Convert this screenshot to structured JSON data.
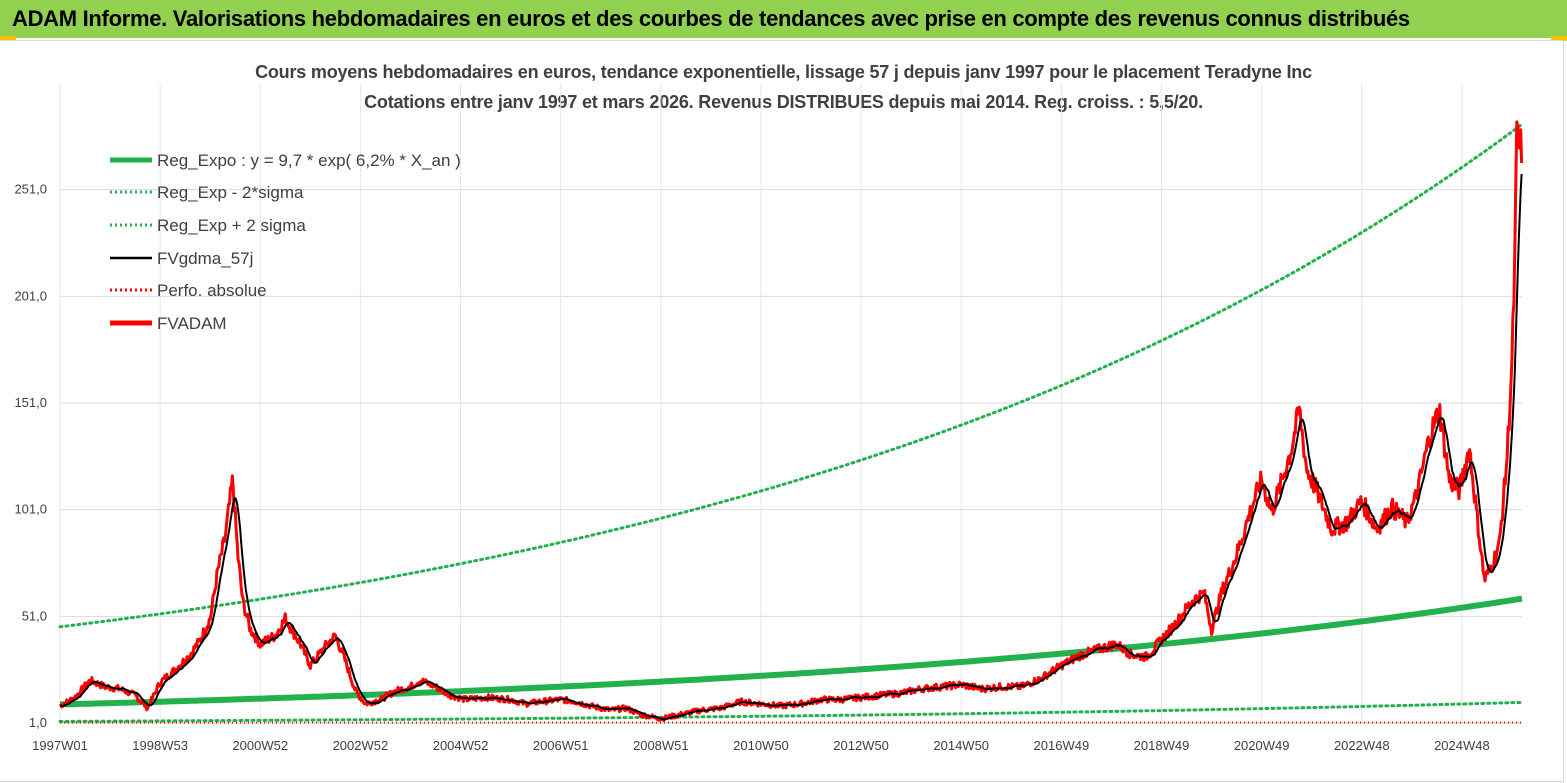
{
  "header": {
    "title": "ADAM Informe. Valorisations hebdomadaires en euros et des courbes de tendances avec prise en compte des revenus connus distribués"
  },
  "chart_data": {
    "type": "line",
    "title": "Cours moyens hebdomadaires en euros, tendance exponentielle, lissage 57 j depuis janv 1997 pour le placement Teradyne Inc",
    "subtitle": "Cotations entre janv 1997 et mars 2026. Revenus DISTRIBUES depuis mai 2014. Reg. croiss. : 5,5/20.",
    "x_tick_labels": [
      "1997W01",
      "1998W53",
      "2000W52",
      "2002W52",
      "2004W52",
      "2006W51",
      "2008W51",
      "2010W50",
      "2012W50",
      "2014W50",
      "2016W49",
      "2018W49",
      "2020W49",
      "2022W48",
      "2024W48"
    ],
    "y_tick_labels": [
      "1,0",
      "51,0",
      "101,0",
      "151,0",
      "201,0",
      "251,0"
    ],
    "xlim": [
      1997.0,
      2026.2
    ],
    "ylim": [
      1,
      301
    ],
    "y_ticks": [
      1,
      51,
      101,
      151,
      201,
      251
    ],
    "legend": {
      "position": "top-left",
      "entries": [
        {
          "name": "Reg_Expo : y = 9,7 * exp( 6,2% *  X_an )",
          "color": "#22b14c",
          "style": "solid-thick"
        },
        {
          "name": "Reg_Exp - 2*sigma",
          "color": "#22b14c",
          "style": "dotted"
        },
        {
          "name": "Reg_Exp + 2 sigma",
          "color": "#22b14c",
          "style": "dotted"
        },
        {
          "name": "FVgdma_57j",
          "color": "#000000",
          "style": "solid"
        },
        {
          "name": "Perfo. absolue",
          "color": "#ff0000",
          "style": "dotted"
        },
        {
          "name": "FVADAM",
          "color": "#ff0000",
          "style": "solid-thick"
        }
      ]
    },
    "trend": {
      "a": 9.7,
      "rate": 0.062,
      "minus_factor": 0.18,
      "plus_factor": 4.75
    },
    "fvadam_keypoints": [
      [
        1997.0,
        9
      ],
      [
        1997.3,
        13
      ],
      [
        1997.6,
        21
      ],
      [
        1997.9,
        18
      ],
      [
        1998.2,
        17
      ],
      [
        1998.5,
        14
      ],
      [
        1998.75,
        8
      ],
      [
        1999.0,
        20
      ],
      [
        1999.3,
        26
      ],
      [
        1999.6,
        33
      ],
      [
        1999.8,
        40
      ],
      [
        2000.0,
        50
      ],
      [
        2000.15,
        72
      ],
      [
        2000.3,
        88
      ],
      [
        2000.45,
        115
      ],
      [
        2000.55,
        80
      ],
      [
        2000.65,
        58
      ],
      [
        2000.8,
        45
      ],
      [
        2001.0,
        38
      ],
      [
        2001.3,
        42
      ],
      [
        2001.5,
        50
      ],
      [
        2001.8,
        38
      ],
      [
        2002.0,
        28
      ],
      [
        2002.3,
        37
      ],
      [
        2002.5,
        42
      ],
      [
        2002.7,
        30
      ],
      [
        2002.9,
        16
      ],
      [
        2003.1,
        10
      ],
      [
        2003.4,
        12
      ],
      [
        2003.7,
        16
      ],
      [
        2004.0,
        18
      ],
      [
        2004.2,
        21
      ],
      [
        2004.5,
        18
      ],
      [
        2004.8,
        14
      ],
      [
        2005.1,
        12
      ],
      [
        2005.5,
        13
      ],
      [
        2006.0,
        12
      ],
      [
        2006.3,
        10
      ],
      [
        2006.6,
        11
      ],
      [
        2007.0,
        12
      ],
      [
        2007.3,
        11
      ],
      [
        2007.6,
        9
      ],
      [
        2008.0,
        7
      ],
      [
        2008.3,
        8
      ],
      [
        2008.6,
        5
      ],
      [
        2009.0,
        3
      ],
      [
        2009.4,
        5
      ],
      [
        2009.8,
        7
      ],
      [
        2010.2,
        8
      ],
      [
        2010.6,
        11
      ],
      [
        2011.0,
        10
      ],
      [
        2011.4,
        9
      ],
      [
        2011.8,
        10
      ],
      [
        2012.2,
        12
      ],
      [
        2012.6,
        12
      ],
      [
        2013.0,
        13
      ],
      [
        2013.4,
        14
      ],
      [
        2013.8,
        15
      ],
      [
        2014.2,
        17
      ],
      [
        2014.6,
        18
      ],
      [
        2015.0,
        19
      ],
      [
        2015.4,
        17
      ],
      [
        2015.8,
        18
      ],
      [
        2016.2,
        18
      ],
      [
        2016.6,
        22
      ],
      [
        2017.0,
        28
      ],
      [
        2017.4,
        33
      ],
      [
        2017.8,
        36
      ],
      [
        2018.1,
        38
      ],
      [
        2018.4,
        33
      ],
      [
        2018.7,
        32
      ],
      [
        2019.0,
        40
      ],
      [
        2019.3,
        48
      ],
      [
        2019.6,
        58
      ],
      [
        2019.85,
        62
      ],
      [
        2020.0,
        45
      ],
      [
        2020.2,
        62
      ],
      [
        2020.5,
        80
      ],
      [
        2020.8,
        102
      ],
      [
        2021.0,
        115
      ],
      [
        2021.2,
        100
      ],
      [
        2021.4,
        114
      ],
      [
        2021.6,
        130
      ],
      [
        2021.75,
        148
      ],
      [
        2021.9,
        120
      ],
      [
        2022.1,
        110
      ],
      [
        2022.4,
        92
      ],
      [
        2022.7,
        95
      ],
      [
        2023.0,
        105
      ],
      [
        2023.3,
        92
      ],
      [
        2023.6,
        102
      ],
      [
        2023.9,
        95
      ],
      [
        2024.1,
        108
      ],
      [
        2024.35,
        135
      ],
      [
        2024.55,
        148
      ],
      [
        2024.75,
        115
      ],
      [
        2024.95,
        110
      ],
      [
        2025.15,
        130
      ],
      [
        2025.3,
        98
      ],
      [
        2025.45,
        68
      ],
      [
        2025.6,
        75
      ],
      [
        2025.75,
        85
      ],
      [
        2025.9,
        125
      ],
      [
        2026.0,
        170
      ],
      [
        2026.05,
        210
      ],
      [
        2026.1,
        280
      ],
      [
        2026.15,
        268
      ],
      [
        2026.2,
        272
      ]
    ]
  }
}
